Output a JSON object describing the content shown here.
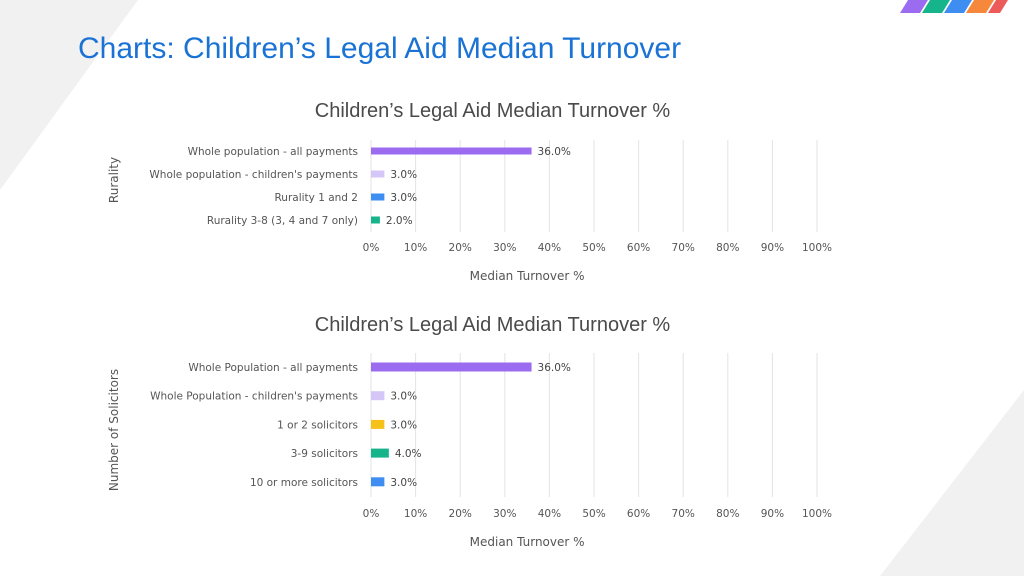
{
  "page": {
    "title": "Charts: Children’s Legal Aid Median Turnover"
  },
  "colors": {
    "accent": "#1a73d4",
    "purple": "#9b6cf0",
    "lavender": "#d4c7f7",
    "blue": "#3d8ef0",
    "teal": "#16b48a",
    "yellow": "#f6c21a",
    "grid": "#e3e3e3"
  },
  "chart_data": [
    {
      "type": "bar",
      "orientation": "horizontal",
      "title": "Children’s Legal Aid Median Turnover %",
      "ylabel": "Rurality",
      "xlabel": "Median Turnover %",
      "xlim": [
        0,
        100
      ],
      "x_ticks": [
        "0%",
        "10%",
        "20%",
        "30%",
        "40%",
        "50%",
        "60%",
        "70%",
        "80%",
        "90%",
        "100%"
      ],
      "grid": true,
      "categories": [
        "Whole population - all payments",
        "Whole population - children's payments",
        "Rurality 1 and 2",
        "Rurality 3-8 (3, 4 and 7 only)"
      ],
      "values": [
        36.0,
        3.0,
        3.0,
        2.0
      ],
      "value_labels": [
        "36.0%",
        "3.0%",
        "3.0%",
        "2.0%"
      ],
      "bar_colors": [
        "#9b6cf0",
        "#d4c7f7",
        "#3d8ef0",
        "#16b48a"
      ]
    },
    {
      "type": "bar",
      "orientation": "horizontal",
      "title": "Children’s Legal Aid Median Turnover %",
      "ylabel": "Number of Solicitors",
      "xlabel": "Median Turnover %",
      "xlim": [
        0,
        100
      ],
      "x_ticks": [
        "0%",
        "10%",
        "20%",
        "30%",
        "40%",
        "50%",
        "60%",
        "70%",
        "80%",
        "90%",
        "100%"
      ],
      "grid": true,
      "categories": [
        "Whole Population - all payments",
        "Whole Population - children's payments",
        "1 or 2 solicitors",
        "3-9 solicitors",
        "10 or more solicitors"
      ],
      "values": [
        36.0,
        3.0,
        3.0,
        4.0,
        3.0
      ],
      "value_labels": [
        "36.0%",
        "3.0%",
        "3.0%",
        "4.0%",
        "3.0%"
      ],
      "bar_colors": [
        "#9b6cf0",
        "#d4c7f7",
        "#f6c21a",
        "#16b48a",
        "#3d8ef0"
      ]
    }
  ]
}
